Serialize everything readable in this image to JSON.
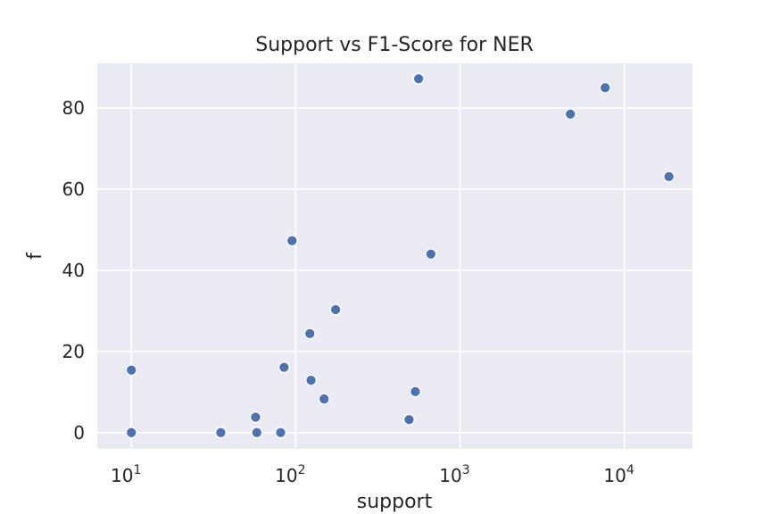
{
  "chart_data": {
    "type": "scatter",
    "title": "Support vs F1-Score for NER",
    "xlabel": "support",
    "ylabel": "f",
    "x_scale": "log",
    "xlim": [
      6.2,
      26000
    ],
    "ylim": [
      -4,
      91
    ],
    "x_ticks": [
      {
        "value": 10,
        "base": "10",
        "exp": "1"
      },
      {
        "value": 100,
        "base": "10",
        "exp": "2"
      },
      {
        "value": 1000,
        "base": "10",
        "exp": "3"
      },
      {
        "value": 10000,
        "base": "10",
        "exp": "4"
      }
    ],
    "y_ticks": [
      0,
      20,
      40,
      60,
      80
    ],
    "grid": true,
    "colors": {
      "marker": "#4c72b0",
      "background": "#eaeaf2",
      "grid": "#ffffff"
    },
    "points": [
      {
        "x": 10,
        "y": 15.4
      },
      {
        "x": 10,
        "y": 0
      },
      {
        "x": 35,
        "y": 0
      },
      {
        "x": 57,
        "y": 3.8
      },
      {
        "x": 58,
        "y": 0
      },
      {
        "x": 81,
        "y": 0
      },
      {
        "x": 85,
        "y": 16.1
      },
      {
        "x": 95,
        "y": 47.3
      },
      {
        "x": 122,
        "y": 24.4
      },
      {
        "x": 124,
        "y": 12.9
      },
      {
        "x": 149,
        "y": 8.3
      },
      {
        "x": 175,
        "y": 30.3
      },
      {
        "x": 490,
        "y": 3.2
      },
      {
        "x": 535,
        "y": 10.1
      },
      {
        "x": 560,
        "y": 87.2
      },
      {
        "x": 665,
        "y": 44.0
      },
      {
        "x": 4700,
        "y": 78.5
      },
      {
        "x": 7650,
        "y": 85.0
      },
      {
        "x": 18700,
        "y": 63.1
      }
    ]
  }
}
